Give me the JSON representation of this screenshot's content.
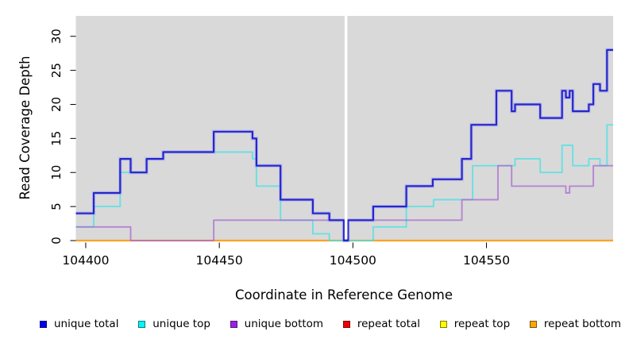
{
  "figure": {
    "xlabel": "Coordinate in Reference Genome",
    "ylabel": "Read Coverage Depth"
  },
  "legend": [
    {
      "label": "unique total",
      "color": "#0000EE"
    },
    {
      "label": "unique top",
      "color": "#00F5FF"
    },
    {
      "label": "unique bottom",
      "color": "#9C1FE8"
    },
    {
      "label": "repeat total",
      "color": "#EE0000"
    },
    {
      "label": "repeat top",
      "color": "#FFFF00"
    },
    {
      "label": "repeat bottom",
      "color": "#FFA500"
    }
  ],
  "chart_data": {
    "type": "line",
    "subtype": "step-coverage",
    "title": "",
    "xlabel": "Coordinate in Reference Genome",
    "ylabel": "Read Coverage Depth",
    "xlim": [
      104396.3,
      104597.4
    ],
    "ylim": [
      0,
      33
    ],
    "x_ticks": [
      104400,
      104450,
      104500,
      104550
    ],
    "y_ticks": [
      0,
      5,
      10,
      15,
      20,
      25,
      30
    ],
    "grid": false,
    "plot_background": "#D9D9D9",
    "gap_band": {
      "x0": 104496.9,
      "x1": 104497.95,
      "color": "#FFFFFF"
    },
    "legend_position": "bottom",
    "x_end": 104597.4,
    "series": [
      {
        "name": "repeat total",
        "color": "#CC0000",
        "width": 2.0,
        "opacity": 1,
        "points": [
          [
            104396.3,
            0
          ]
        ]
      },
      {
        "name": "repeat top",
        "color": "#FFFF00",
        "width": 2.0,
        "opacity": 1,
        "points": [
          [
            104396.3,
            0
          ]
        ]
      },
      {
        "name": "repeat bottom",
        "color": "#FFA125",
        "width": 2.2,
        "opacity": 1,
        "points": [
          [
            104396.3,
            0
          ]
        ]
      },
      {
        "name": "unique top",
        "color": "#3FE0E6",
        "width": 1.9,
        "opacity": 0.72,
        "points": [
          [
            104396.3,
            2
          ],
          [
            104403.0,
            5
          ],
          [
            104412.9,
            10
          ],
          [
            104422.8,
            12
          ],
          [
            104429.0,
            13
          ],
          [
            104462.4,
            12
          ],
          [
            104463.9,
            8
          ],
          [
            104472.9,
            3
          ],
          [
            104485.0,
            1
          ],
          [
            104491.2,
            0
          ],
          [
            104507.6,
            2
          ],
          [
            104520.0,
            5
          ],
          [
            104530.2,
            6
          ],
          [
            104544.8,
            11
          ],
          [
            104560.7,
            12
          ],
          [
            104570.1,
            10
          ],
          [
            104578.3,
            14
          ],
          [
            104582.3,
            11
          ],
          [
            104588.3,
            12
          ],
          [
            104592.5,
            11
          ],
          [
            104595.1,
            17
          ]
        ]
      },
      {
        "name": "unique bottom",
        "color": "#A869D0",
        "width": 1.9,
        "opacity": 0.75,
        "points": [
          [
            104396.3,
            2
          ],
          [
            104416.8,
            0
          ],
          [
            104447.9,
            3
          ],
          [
            104540.8,
            6
          ],
          [
            104554.3,
            11
          ],
          [
            104559.4,
            8
          ],
          [
            104579.7,
            7
          ],
          [
            104581.1,
            8
          ],
          [
            104590.0,
            11
          ]
        ]
      },
      {
        "name": "unique total",
        "color": "#1E1ECB",
        "width": 2.2,
        "opacity": 0.95,
        "halo": true,
        "points": [
          [
            104396.3,
            4
          ],
          [
            104403.0,
            7
          ],
          [
            104412.9,
            12
          ],
          [
            104416.8,
            10
          ],
          [
            104422.8,
            12
          ],
          [
            104429.0,
            13
          ],
          [
            104447.9,
            16
          ],
          [
            104462.4,
            15
          ],
          [
            104463.9,
            11
          ],
          [
            104472.9,
            6
          ],
          [
            104485.0,
            4
          ],
          [
            104491.2,
            3
          ],
          [
            104496.6,
            0
          ],
          [
            104498.2,
            3
          ],
          [
            104507.6,
            5
          ],
          [
            104520.0,
            8
          ],
          [
            104529.9,
            9
          ],
          [
            104540.8,
            12
          ],
          [
            104544.3,
            17
          ],
          [
            104553.7,
            22
          ],
          [
            104559.4,
            19
          ],
          [
            104560.7,
            20
          ],
          [
            104570.1,
            18
          ],
          [
            104578.3,
            22
          ],
          [
            104579.7,
            21
          ],
          [
            104581.1,
            22
          ],
          [
            104582.3,
            19
          ],
          [
            104588.3,
            20
          ],
          [
            104590.0,
            23
          ],
          [
            104592.5,
            22
          ],
          [
            104595.1,
            28
          ]
        ]
      }
    ]
  }
}
